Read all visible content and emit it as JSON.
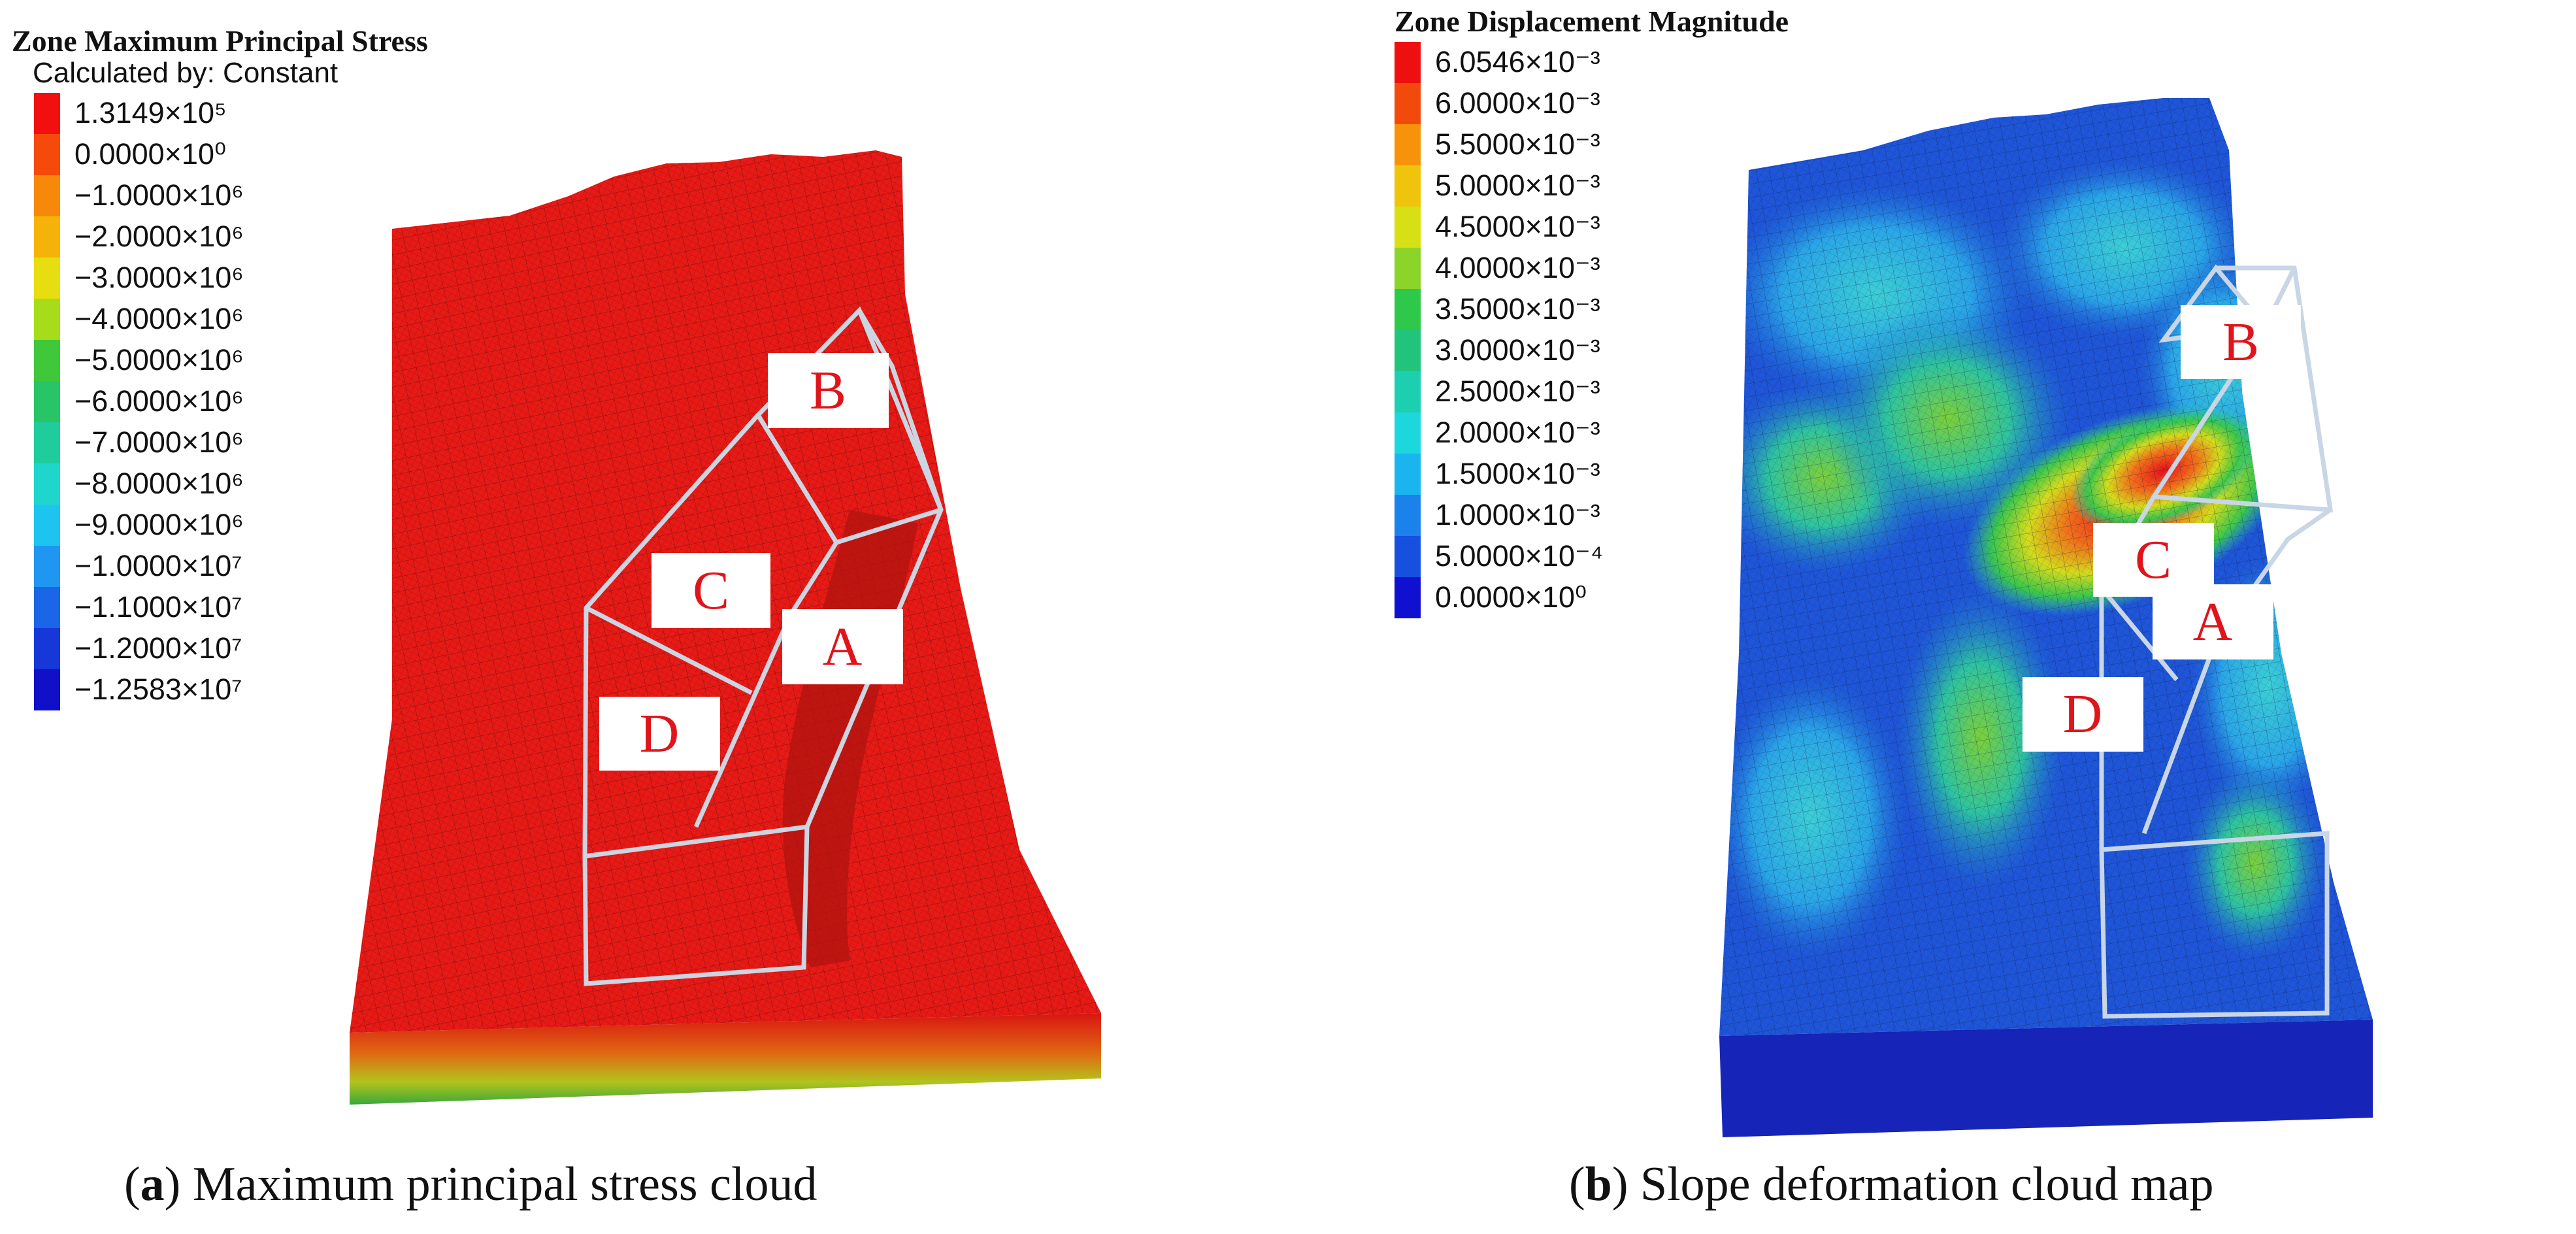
{
  "panel_a": {
    "legend": {
      "title": "Zone Maximum Principal Stress",
      "subtitle": "Calculated by: Constant",
      "entries": [
        {
          "label": "1.3149×10⁵",
          "color": "#f20f0f"
        },
        {
          "label": "0.0000×10⁰",
          "color": "#f54a0c"
        },
        {
          "label": "−1.0000×10⁶",
          "color": "#f7890a"
        },
        {
          "label": "−2.0000×10⁶",
          "color": "#f5b30a"
        },
        {
          "label": "−3.0000×10⁶",
          "color": "#e6de10"
        },
        {
          "label": "−4.0000×10⁶",
          "color": "#a6dc1a"
        },
        {
          "label": "−5.0000×10⁶",
          "color": "#3ec83a"
        },
        {
          "label": "−6.0000×10⁶",
          "color": "#27c468"
        },
        {
          "label": "−7.0000×10⁶",
          "color": "#1fcc9c"
        },
        {
          "label": "−8.0000×10⁶",
          "color": "#1fd6cc"
        },
        {
          "label": "−9.0000×10⁶",
          "color": "#1ec4f0"
        },
        {
          "label": "−1.0000×10⁷",
          "color": "#1f96f0"
        },
        {
          "label": "−1.1000×10⁷",
          "color": "#1a66e6"
        },
        {
          "label": "−1.2000×10⁷",
          "color": "#1638d9"
        },
        {
          "label": "−1.2583×10⁷",
          "color": "#1010c8"
        }
      ]
    },
    "zones": {
      "a": "A",
      "b": "B",
      "c": "C",
      "d": "D"
    },
    "caption": {
      "letter": "a",
      "text": "Maximum principal stress cloud"
    }
  },
  "panel_b": {
    "legend": {
      "title": "Zone Displacement Magnitude",
      "entries": [
        {
          "label": "6.0546×10⁻³",
          "color": "#ee1010"
        },
        {
          "label": "6.0000×10⁻³",
          "color": "#f24a0c"
        },
        {
          "label": "5.5000×10⁻³",
          "color": "#f7930a"
        },
        {
          "label": "5.0000×10⁻³",
          "color": "#f0c40c"
        },
        {
          "label": "4.5000×10⁻³",
          "color": "#d6e014"
        },
        {
          "label": "4.0000×10⁻³",
          "color": "#8cd42a"
        },
        {
          "label": "3.5000×10⁻³",
          "color": "#2ec84a"
        },
        {
          "label": "3.0000×10⁻³",
          "color": "#22c47c"
        },
        {
          "label": "2.5000×10⁻³",
          "color": "#1ccfb0"
        },
        {
          "label": "2.0000×10⁻³",
          "color": "#1cd8dc"
        },
        {
          "label": "1.5000×10⁻³",
          "color": "#1ab4f0"
        },
        {
          "label": "1.0000×10⁻³",
          "color": "#1a82ea"
        },
        {
          "label": "5.0000×10⁻⁴",
          "color": "#1650de"
        },
        {
          "label": "0.0000×10⁰",
          "color": "#1010d0"
        }
      ]
    },
    "zones": {
      "a": "A",
      "b": "B",
      "c": "C",
      "d": "D"
    },
    "caption": {
      "letter": "b",
      "text": "Slope deformation cloud map"
    }
  },
  "colors": {
    "stress_surface": "#e81a16",
    "stress_side": "#c81410",
    "displacement_base": "#1f55d8",
    "outline": "#c8d3e0",
    "zone_text": "#e0141b"
  }
}
